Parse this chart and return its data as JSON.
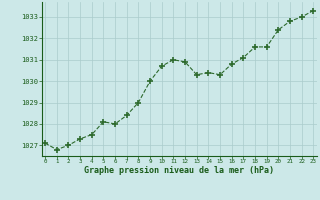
{
  "x": [
    0,
    1,
    2,
    3,
    4,
    5,
    6,
    7,
    8,
    9,
    10,
    11,
    12,
    13,
    14,
    15,
    16,
    17,
    18,
    19,
    20,
    21,
    22,
    23
  ],
  "y": [
    1027.1,
    1026.8,
    1027.0,
    1027.3,
    1027.5,
    1028.1,
    1028.0,
    1028.4,
    1029.0,
    1030.0,
    1030.7,
    1031.0,
    1030.9,
    1030.3,
    1030.4,
    1030.3,
    1030.8,
    1031.1,
    1031.6,
    1031.6,
    1032.4,
    1032.8,
    1033.0,
    1033.3
  ],
  "line_color": "#2d6a2d",
  "marker_color": "#2d6a2d",
  "bg_color": "#cce8e8",
  "grid_color": "#aacccc",
  "xlabel": "Graphe pression niveau de la mer (hPa)",
  "xlabel_color": "#1a5c1a",
  "tick_color": "#1a5c1a",
  "ylim": [
    1026.5,
    1033.7
  ],
  "yticks": [
    1027,
    1028,
    1029,
    1030,
    1031,
    1032,
    1033
  ],
  "xticks": [
    0,
    1,
    2,
    3,
    4,
    5,
    6,
    7,
    8,
    9,
    10,
    11,
    12,
    13,
    14,
    15,
    16,
    17,
    18,
    19,
    20,
    21,
    22,
    23
  ],
  "xlim": [
    -0.3,
    23.3
  ]
}
